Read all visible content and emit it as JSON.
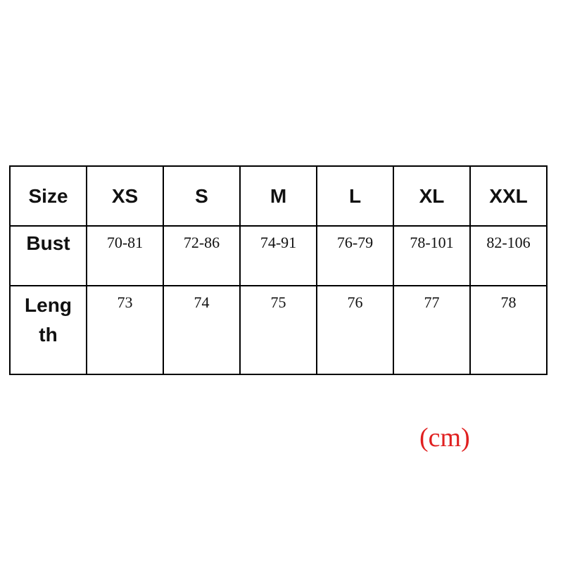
{
  "table": {
    "rows": [
      [
        "Size",
        "XS",
        "S",
        "M",
        "L",
        "XL",
        "XXL"
      ],
      [
        "Bust",
        "70-81",
        "72-86",
        "74-91",
        "76-79",
        "78-101",
        "82-106"
      ],
      [
        "Length",
        "73",
        "74",
        "75",
        "76",
        "77",
        "78"
      ]
    ]
  },
  "unit": "(cm)"
}
